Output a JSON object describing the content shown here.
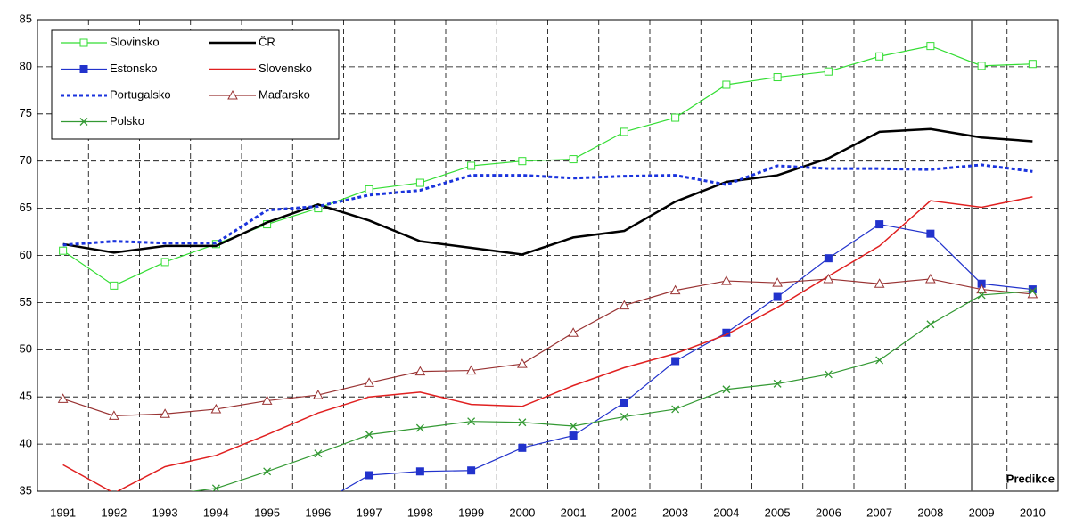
{
  "chart_data": {
    "type": "line",
    "categories": [
      "1991",
      "1992",
      "1993",
      "1994",
      "1995",
      "1996",
      "1997",
      "1998",
      "1999",
      "2000",
      "2001",
      "2002",
      "2003",
      "2004",
      "2005",
      "2006",
      "2007",
      "2008",
      "2009",
      "2010"
    ],
    "ylim": [
      35,
      85
    ],
    "yticks": [
      35,
      40,
      45,
      50,
      55,
      60,
      65,
      70,
      75,
      80,
      85
    ],
    "grid": true,
    "legend": "upper-left",
    "annotation": "Predikce",
    "series": [
      {
        "name": "Slovinsko",
        "color": "#33dd33",
        "marker": "square-open",
        "dash": "solid",
        "width": 1.2,
        "values": [
          60.5,
          56.8,
          59.3,
          61.2,
          63.3,
          65.0,
          67.0,
          67.7,
          69.5,
          70.0,
          70.2,
          73.1,
          74.6,
          78.1,
          78.9,
          79.5,
          81.1,
          82.2,
          80.1,
          80.3
        ]
      },
      {
        "name": "ČR",
        "color": "#000000",
        "marker": "none",
        "dash": "solid",
        "width": 2.5,
        "values": [
          61.2,
          60.3,
          61.0,
          61.0,
          63.5,
          65.4,
          63.7,
          61.5,
          60.8,
          60.1,
          61.9,
          62.6,
          65.7,
          67.8,
          68.5,
          70.3,
          73.1,
          73.4,
          72.5,
          72.1
        ]
      },
      {
        "name": "Estonsko",
        "color": "#2233cc",
        "marker": "square-filled",
        "dash": "solid",
        "width": 1.2,
        "values": [
          null,
          null,
          null,
          null,
          null,
          33.6,
          36.7,
          37.1,
          37.2,
          39.6,
          40.9,
          44.4,
          48.8,
          51.8,
          55.6,
          59.7,
          63.3,
          62.3,
          57.0,
          56.4
        ]
      },
      {
        "name": "Slovensko",
        "color": "#e02020",
        "marker": "none",
        "dash": "solid",
        "width": 1.5,
        "values": [
          37.8,
          34.8,
          37.6,
          38.8,
          41.0,
          43.3,
          45.0,
          45.5,
          44.2,
          44.0,
          46.2,
          48.1,
          49.6,
          51.6,
          54.5,
          57.8,
          61.0,
          65.8,
          65.1,
          66.2
        ]
      },
      {
        "name": "Portugalsko",
        "color": "#1a33dd",
        "marker": "none",
        "dash": "dotted",
        "width": 3,
        "values": [
          61.1,
          61.5,
          61.3,
          61.3,
          64.8,
          65.2,
          66.4,
          66.9,
          68.5,
          68.5,
          68.2,
          68.4,
          68.5,
          67.5,
          69.5,
          69.2,
          69.2,
          69.1,
          69.6,
          68.9
        ]
      },
      {
        "name": "Maďarsko",
        "color": "#993333",
        "marker": "triangle-open",
        "dash": "solid",
        "width": 1.2,
        "values": [
          44.8,
          43.0,
          43.2,
          43.7,
          44.6,
          45.2,
          46.5,
          47.7,
          47.8,
          48.5,
          51.8,
          54.7,
          56.3,
          57.3,
          57.1,
          57.5,
          57.0,
          57.5,
          56.4,
          55.9
        ]
      },
      {
        "name": "Polsko",
        "color": "#339933",
        "marker": "x",
        "dash": "solid",
        "width": 1.2,
        "values": [
          null,
          null,
          34.6,
          35.3,
          37.1,
          39.0,
          41.0,
          41.7,
          42.4,
          42.3,
          41.9,
          42.9,
          43.7,
          45.8,
          46.4,
          47.4,
          48.9,
          52.7,
          55.8,
          56.2
        ]
      }
    ]
  }
}
